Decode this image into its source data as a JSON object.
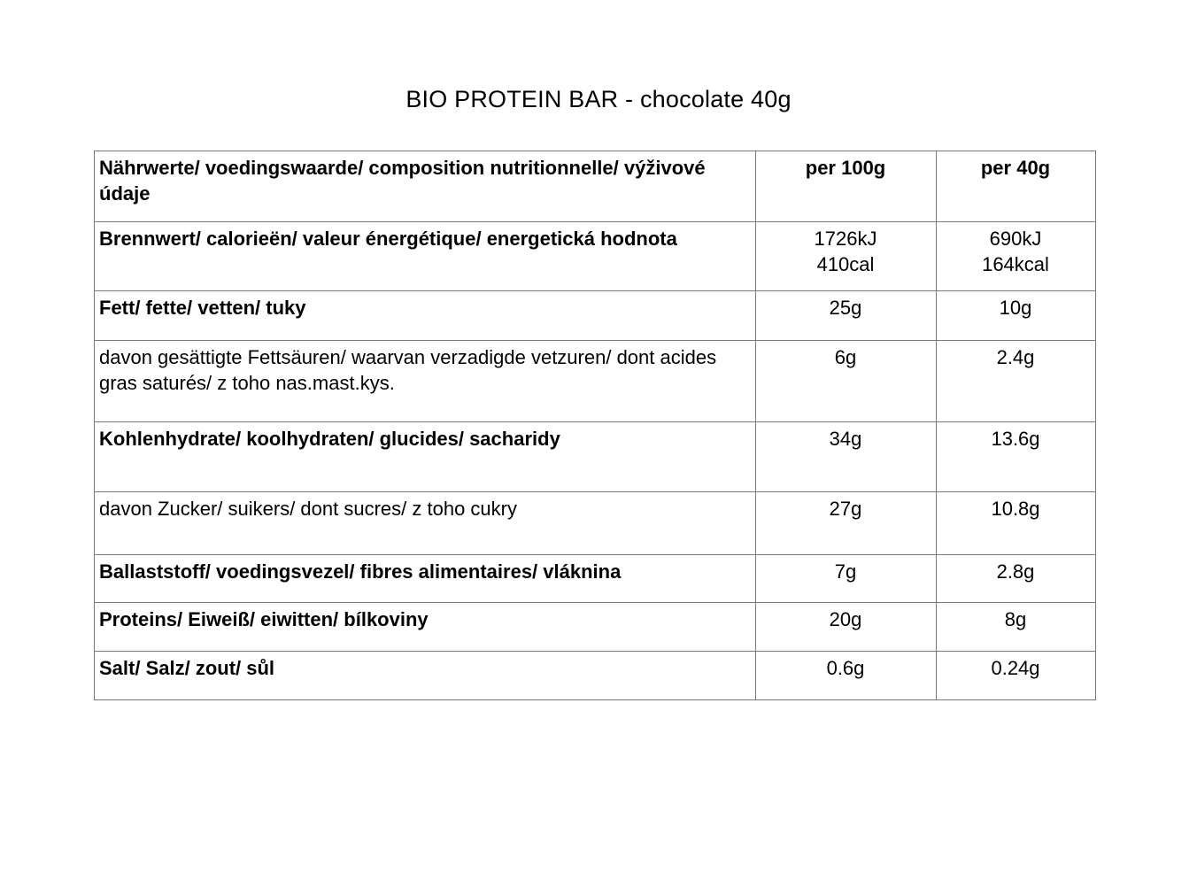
{
  "page": {
    "title": "BIO PROTEIN BAR - chocolate 40g"
  },
  "table": {
    "header": {
      "label": "Nährwerte/ voedingswaarde/ composition nutritionnelle/ výživové údaje",
      "col_per_100g": "per 100g",
      "col_per_40g": "per 40g"
    },
    "rows": [
      {
        "label": "Brennwert/ calorieën/ valeur énergétique/ energetická hodnota",
        "per100g": "1726kJ\n410cal",
        "per40g": "690kJ\n164kcal"
      },
      {
        "label": "Fett/ fette/ vetten/ tuky",
        "per100g": "25g",
        "per40g": "10g"
      },
      {
        "label": "davon gesättigte Fettsäuren/ waarvan verzadigde vetzuren/ dont acides gras saturés/ z toho nas.mast.kys.",
        "per100g": "6g",
        "per40g": "2.4g"
      },
      {
        "label": "Kohlenhydrate/ koolhydraten/ glucides/ sacharidy",
        "per100g": "34g",
        "per40g": "13.6g"
      },
      {
        "label": "davon Zucker/ suikers/ dont sucres/ z toho cukry",
        "per100g": "27g",
        "per40g": "10.8g"
      },
      {
        "label": "Ballaststoff/ voedingsvezel/ fibres alimentaires/ vláknina",
        "per100g": "7g",
        "per40g": "2.8g"
      },
      {
        "label": "Proteins/ Eiweiß/ eiwitten/ bílkoviny",
        "per100g": "20g",
        "per40g": "8g"
      },
      {
        "label": "Salt/ Salz/ zout/ sůl",
        "per100g": "0.6g",
        "per40g": "0.24g"
      }
    ]
  },
  "colors": {
    "border": "#7a7a7a",
    "text": "#000000",
    "background": "#ffffff"
  }
}
